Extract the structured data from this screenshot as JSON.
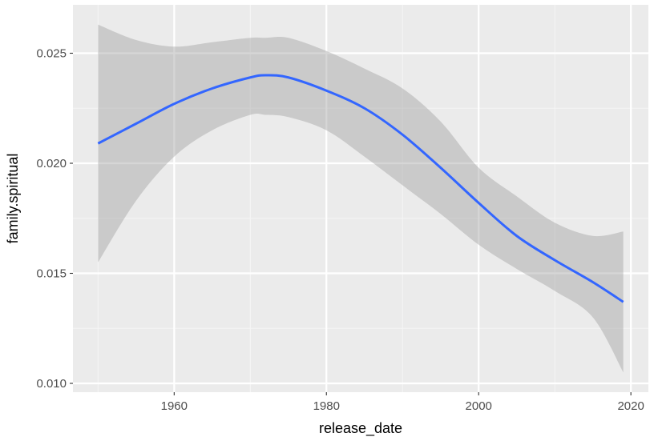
{
  "chart_data": {
    "type": "line",
    "title": "",
    "xlabel": "release_date",
    "ylabel": "family.spiritual",
    "xlim": [
      1946.7,
      2022.3
    ],
    "ylim": [
      0.0096,
      0.0272
    ],
    "x_ticks": [
      1960,
      1980,
      2000,
      2020
    ],
    "x_tick_labels": [
      "1960",
      "1980",
      "2000",
      "2020"
    ],
    "y_ticks": [
      0.01,
      0.015,
      0.02,
      0.025
    ],
    "y_tick_labels": [
      "0.010",
      "0.015",
      "0.020",
      "0.025"
    ],
    "grid": true,
    "legend": "none",
    "series": [
      {
        "kind": "smooth",
        "color": "#3366ff",
        "x": [
          1950,
          1955,
          1960,
          1965,
          1970,
          1972,
          1975,
          1980,
          1985,
          1990,
          1995,
          2000,
          2005,
          2010,
          2015,
          2019
        ],
        "y": [
          0.0209,
          0.0218,
          0.0227,
          0.0234,
          0.0239,
          0.024,
          0.0239,
          0.0233,
          0.0225,
          0.0213,
          0.0198,
          0.0182,
          0.0167,
          0.0156,
          0.0146,
          0.0137
        ],
        "lower": [
          0.0155,
          0.0183,
          0.0203,
          0.0215,
          0.0222,
          0.0222,
          0.0221,
          0.0215,
          0.0203,
          0.019,
          0.0177,
          0.0163,
          0.0152,
          0.0142,
          0.013,
          0.0105
        ],
        "upper": [
          0.0263,
          0.0256,
          0.0253,
          0.0255,
          0.0257,
          0.0257,
          0.0257,
          0.0251,
          0.0243,
          0.0234,
          0.0219,
          0.0198,
          0.0185,
          0.0173,
          0.0167,
          0.0169
        ],
        "band_color": "#999999"
      }
    ],
    "colors": {
      "panel_background": "#ebebeb",
      "grid_major": "#ffffff",
      "grid_minor": "#f5f5f5"
    }
  }
}
